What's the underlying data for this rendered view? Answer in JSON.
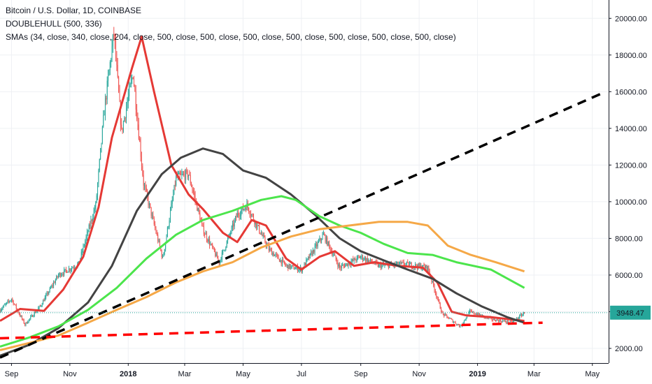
{
  "legend": {
    "symbol": "Bitcoin / U.S. Dollar, 1D, COINBASE",
    "doublehull": "DOUBLEHULL (500, 336)",
    "smas": "SMAs (34, close, 340, close, 204, close, 500, close, 500, close, 500, close, 500, close, 500, close, 500, close, 500, close)"
  },
  "price_badge": "3948.47",
  "colors": {
    "candle_up": "#26a69a",
    "candle_down": "#ef5350",
    "sma_red": "#e53935",
    "sma_black": "#434343",
    "sma_green": "#4ce54c",
    "sma_orange": "#f5a847",
    "trend_black": "#000000",
    "trend_red": "#ff0000",
    "badge": "#26a69a",
    "grid": "#eef0f4"
  },
  "chart_data": {
    "type": "candlestick",
    "grid": true,
    "x_ticks": [
      "Sep",
      "Nov",
      "2018",
      "Mar",
      "May",
      "Jul",
      "Sep",
      "Nov",
      "2019",
      "Mar",
      "May"
    ],
    "y_ticks": [
      "2000.00",
      "4000.00",
      "6000.00",
      "8000.00",
      "10000.00",
      "12000.00",
      "14000.00",
      "16000.00",
      "18000.00",
      "20000.00"
    ],
    "ylim": [
      1200,
      21000
    ],
    "price_path": [
      [
        "2017-08-20",
        4100
      ],
      [
        "2017-09-01",
        4700
      ],
      [
        "2017-09-15",
        3300
      ],
      [
        "2017-10-01",
        4300
      ],
      [
        "2017-10-20",
        6000
      ],
      [
        "2017-11-10",
        6600
      ],
      [
        "2017-11-28",
        9800
      ],
      [
        "2017-12-07",
        15000
      ],
      [
        "2017-12-17",
        19200
      ],
      [
        "2017-12-25",
        13800
      ],
      [
        "2018-01-06",
        17000
      ],
      [
        "2018-01-17",
        11000
      ],
      [
        "2018-02-06",
        6900
      ],
      [
        "2018-02-20",
        11300
      ],
      [
        "2018-03-05",
        11500
      ],
      [
        "2018-03-20",
        8500
      ],
      [
        "2018-04-06",
        6700
      ],
      [
        "2018-04-25",
        9300
      ],
      [
        "2018-05-05",
        9800
      ],
      [
        "2018-05-28",
        7400
      ],
      [
        "2018-06-15",
        6500
      ],
      [
        "2018-07-01",
        6300
      ],
      [
        "2018-07-24",
        8200
      ],
      [
        "2018-08-10",
        6400
      ],
      [
        "2018-09-01",
        7000
      ],
      [
        "2018-09-20",
        6500
      ],
      [
        "2018-10-15",
        6600
      ],
      [
        "2018-11-10",
        6400
      ],
      [
        "2018-11-25",
        3900
      ],
      [
        "2018-12-14",
        3200
      ],
      [
        "2018-12-24",
        4000
      ],
      [
        "2019-01-15",
        3600
      ],
      [
        "2019-02-06",
        3400
      ],
      [
        "2019-02-19",
        3948.47
      ]
    ],
    "series": [
      {
        "color": "#e53935",
        "points": [
          [
            "2017-08-20",
            3500
          ],
          [
            "2017-09-10",
            4150
          ],
          [
            "2017-10-05",
            4050
          ],
          [
            "2017-10-25",
            5200
          ],
          [
            "2017-11-15",
            7000
          ],
          [
            "2017-12-01",
            9700
          ],
          [
            "2017-12-15",
            13500
          ],
          [
            "2018-01-05",
            17300
          ],
          [
            "2018-01-15",
            19000
          ],
          [
            "2018-01-28",
            16000
          ],
          [
            "2018-02-15",
            12000
          ],
          [
            "2018-03-05",
            10400
          ],
          [
            "2018-03-20",
            9600
          ],
          [
            "2018-04-10",
            8300
          ],
          [
            "2018-04-25",
            7800
          ],
          [
            "2018-05-10",
            9000
          ],
          [
            "2018-05-25",
            8700
          ],
          [
            "2018-06-15",
            6900
          ],
          [
            "2018-07-01",
            6300
          ],
          [
            "2018-07-20",
            7000
          ],
          [
            "2018-08-05",
            7300
          ],
          [
            "2018-08-25",
            6500
          ],
          [
            "2018-09-15",
            6700
          ],
          [
            "2018-10-10",
            6500
          ],
          [
            "2018-11-05",
            6400
          ],
          [
            "2018-11-20",
            5600
          ],
          [
            "2018-12-05",
            4000
          ],
          [
            "2018-12-20",
            3800
          ],
          [
            "2019-01-15",
            3700
          ],
          [
            "2019-02-05",
            3580
          ],
          [
            "2019-02-19",
            3500
          ]
        ]
      },
      {
        "color": "#434343",
        "points": [
          [
            "2017-08-20",
            1600
          ],
          [
            "2017-09-20",
            2200
          ],
          [
            "2017-10-20",
            3100
          ],
          [
            "2017-11-20",
            4500
          ],
          [
            "2017-12-15",
            6500
          ],
          [
            "2018-01-10",
            9500
          ],
          [
            "2018-02-05",
            11500
          ],
          [
            "2018-02-25",
            12400
          ],
          [
            "2018-03-20",
            12900
          ],
          [
            "2018-04-10",
            12600
          ],
          [
            "2018-05-01",
            11700
          ],
          [
            "2018-05-25",
            11300
          ],
          [
            "2018-06-20",
            10400
          ],
          [
            "2018-07-15",
            9300
          ],
          [
            "2018-08-10",
            8000
          ],
          [
            "2018-09-01",
            7300
          ],
          [
            "2018-09-25",
            6800
          ],
          [
            "2018-10-20",
            6300
          ],
          [
            "2018-11-15",
            5800
          ],
          [
            "2018-12-10",
            5000
          ],
          [
            "2019-01-05",
            4300
          ],
          [
            "2019-02-01",
            3700
          ],
          [
            "2019-02-19",
            3400
          ]
        ]
      },
      {
        "color": "#4ce54c",
        "points": [
          [
            "2017-08-20",
            2100
          ],
          [
            "2017-09-20",
            2600
          ],
          [
            "2017-10-20",
            3200
          ],
          [
            "2017-11-20",
            4100
          ],
          [
            "2017-12-20",
            5300
          ],
          [
            "2018-01-20",
            6900
          ],
          [
            "2018-02-20",
            8200
          ],
          [
            "2018-03-20",
            9000
          ],
          [
            "2018-04-20",
            9500
          ],
          [
            "2018-05-20",
            10100
          ],
          [
            "2018-06-10",
            10300
          ],
          [
            "2018-06-25",
            10100
          ],
          [
            "2018-07-20",
            9200
          ],
          [
            "2018-08-10",
            8700
          ],
          [
            "2018-09-01",
            8300
          ],
          [
            "2018-09-25",
            7700
          ],
          [
            "2018-10-20",
            7200
          ],
          [
            "2018-11-15",
            7100
          ],
          [
            "2018-12-10",
            6700
          ],
          [
            "2019-01-15",
            6300
          ],
          [
            "2019-02-19",
            5300
          ]
        ]
      },
      {
        "color": "#f5a847",
        "points": [
          [
            "2017-08-20",
            1900
          ],
          [
            "2017-09-20",
            2300
          ],
          [
            "2017-10-20",
            2700
          ],
          [
            "2017-11-20",
            3400
          ],
          [
            "2017-12-20",
            4100
          ],
          [
            "2018-01-20",
            4800
          ],
          [
            "2018-02-20",
            5600
          ],
          [
            "2018-03-20",
            6200
          ],
          [
            "2018-04-20",
            6700
          ],
          [
            "2018-05-20",
            7500
          ],
          [
            "2018-06-20",
            8100
          ],
          [
            "2018-07-20",
            8500
          ],
          [
            "2018-08-20",
            8700
          ],
          [
            "2018-09-20",
            8900
          ],
          [
            "2018-10-20",
            8900
          ],
          [
            "2018-11-10",
            8700
          ],
          [
            "2018-12-01",
            7600
          ],
          [
            "2018-12-25",
            7100
          ],
          [
            "2019-01-20",
            6700
          ],
          [
            "2019-02-19",
            6200
          ]
        ]
      }
    ],
    "trendlines": [
      {
        "color": "#000000",
        "points": [
          [
            "2017-08-20",
            1500
          ],
          [
            "2019-05-15",
            16000
          ]
        ]
      },
      {
        "color": "#ff0000",
        "points": [
          [
            "2017-08-20",
            2550
          ],
          [
            "2019-03-10",
            3400
          ]
        ]
      }
    ],
    "last_price": 3948.47
  }
}
